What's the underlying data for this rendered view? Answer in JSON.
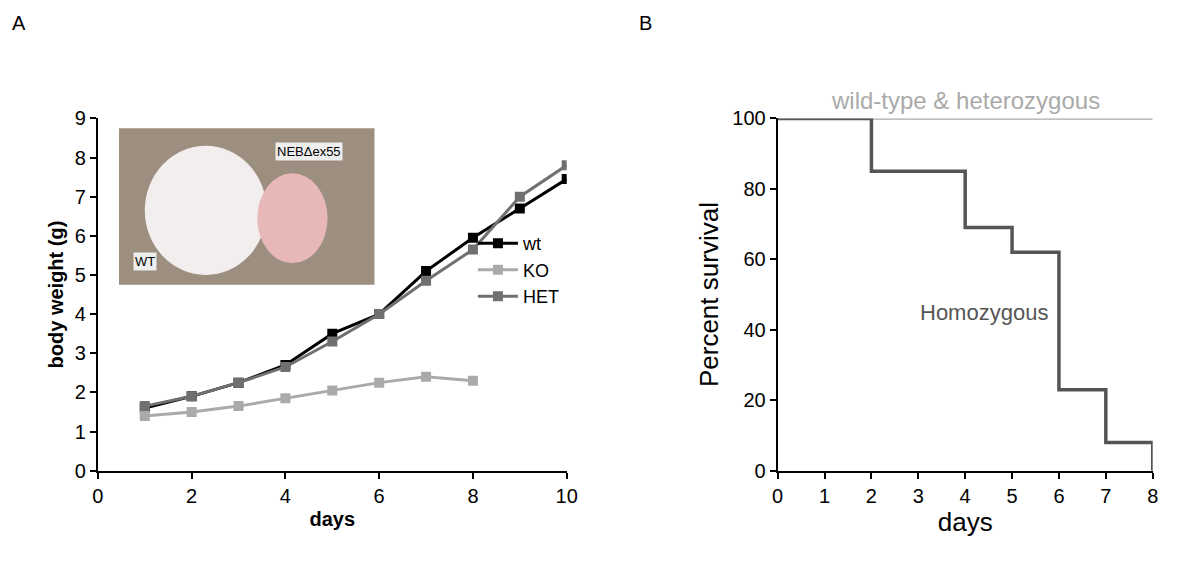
{
  "chart_data": [
    {
      "panel": "A",
      "type": "line",
      "marker": "square",
      "grid": false,
      "legend": "right",
      "x": [
        1,
        2,
        3,
        4,
        5,
        6,
        7,
        8,
        9,
        10
      ],
      "series": [
        {
          "name": "wt",
          "color": "#000000",
          "values": [
            1.6,
            1.9,
            2.25,
            2.7,
            3.5,
            4.0,
            5.1,
            5.95,
            6.7,
            7.45
          ]
        },
        {
          "name": "KO",
          "color": "#aaaaaa",
          "values": [
            1.4,
            1.5,
            1.65,
            1.85,
            2.05,
            2.25,
            2.4,
            2.3,
            null,
            null
          ]
        },
        {
          "name": "HET",
          "color": "#707070",
          "values": [
            1.65,
            1.9,
            2.25,
            2.65,
            3.3,
            4.0,
            4.85,
            5.65,
            7.0,
            7.8
          ]
        }
      ],
      "xlim": [
        0,
        10
      ],
      "xticks": [
        0,
        2,
        4,
        6,
        8,
        10
      ],
      "ylim": [
        0,
        9
      ],
      "yticks": [
        0,
        1,
        2,
        3,
        4,
        5,
        6,
        7,
        8,
        9
      ],
      "x_label": "days",
      "y_label": "body weight (g)",
      "inset_labels": [
        "NEBΔex55",
        "WT"
      ]
    },
    {
      "panel": "B",
      "type": "line",
      "line_style": "step",
      "grid": false,
      "series": [
        {
          "name": "wild-type & heterozygous",
          "color": "#aaaaaa",
          "x": [
            0,
            8
          ],
          "values": [
            100,
            100
          ]
        },
        {
          "name": "Homozygous",
          "color": "#555555",
          "x": [
            0,
            2,
            4,
            5,
            6,
            7,
            8
          ],
          "values": [
            100,
            85,
            69,
            62,
            23,
            8,
            0
          ]
        }
      ],
      "xlim": [
        0,
        8
      ],
      "xticks": [
        0,
        1,
        2,
        3,
        4,
        5,
        6,
        7,
        8
      ],
      "ylim": [
        0,
        100
      ],
      "yticks": [
        0,
        20,
        40,
        60,
        80,
        100
      ],
      "x_label": "days",
      "y_label": "Percent survival"
    }
  ]
}
